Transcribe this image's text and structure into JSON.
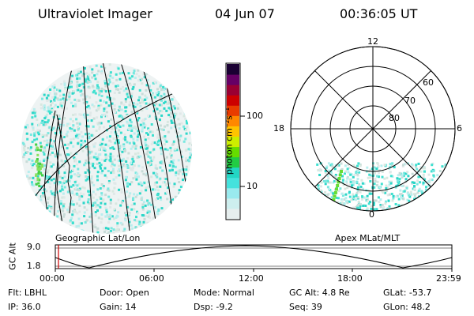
{
  "header": {
    "instrument": "Ultraviolet Imager",
    "date": "04 Jun 07",
    "time": "00:36:05 UT"
  },
  "colorbar": {
    "label": "photon cm⁻²s⁻¹",
    "ticks": [
      "100",
      "10"
    ],
    "colors": [
      "#1a0033",
      "#660066",
      "#990033",
      "#cc0000",
      "#e83c00",
      "#ff8800",
      "#ffc400",
      "#ccee00",
      "#66dd00",
      "#22cc44",
      "#22d6c4",
      "#44e2dd",
      "#99eaee",
      "#cdeeee",
      "#e6eeee"
    ]
  },
  "left_panel": {
    "caption": "Geographic Lat/Lon"
  },
  "right_panel": {
    "caption": "Apex MLat/MLT",
    "mlt_labels": {
      "top": "12",
      "left": "18",
      "right": "6",
      "bottom": "0"
    },
    "lat_labels": [
      "60",
      "70",
      "80"
    ]
  },
  "altitude_plot": {
    "ylabel": "GC Alt",
    "yticks": [
      "9.0",
      "1.8"
    ],
    "xticks": [
      "00:00",
      "06:00",
      "12:00",
      "18:00",
      "23:59"
    ],
    "marker_color": "#cc0000"
  },
  "info": {
    "flt": "Flt: LBHL",
    "ip": "IP: 36.0",
    "door": "Door: Open",
    "gain": "Gain: 14",
    "mode": "Mode: Normal",
    "dsp": "Dsp:   -9.2",
    "gcalt": "GC Alt: 4.8 Re",
    "seq": "Seq: 39",
    "glat": "GLat: -53.7",
    "glon": "GLon:  48.2"
  }
}
